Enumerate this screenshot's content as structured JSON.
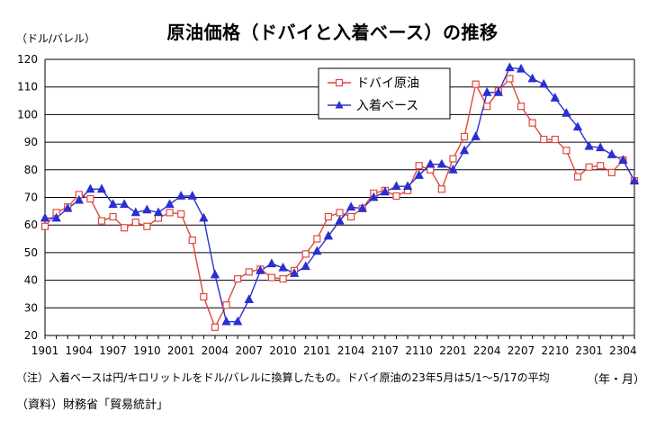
{
  "header": {
    "title": "原油価格（ドバイと入着ベース）の推移",
    "unit": "（ドル/バレル）",
    "x_unit": "（年・月）"
  },
  "footer": {
    "note": "（注）入着ベースは円/キロリットルをドル/バレルに換算したもの。ドバイ原油の23年5月は5/1～5/17の平均",
    "source": "（資料）財務省「貿易統計」"
  },
  "colors": {
    "dubai": "#e0483c",
    "landed": "#2a2fd0",
    "grid": "#000000"
  },
  "chart_data": {
    "type": "line",
    "title": "原油価格（ドバイと入着ベース）の推移",
    "ylabel": "（ドル/バレル）",
    "xlabel": "（年・月）",
    "ylim": [
      20,
      120
    ],
    "yticks": [
      20,
      30,
      40,
      50,
      60,
      70,
      80,
      90,
      100,
      110,
      120
    ],
    "grid": "horizontal",
    "legend_position": "top-center-right",
    "x_tick_labels": [
      "1901",
      "1904",
      "1907",
      "1910",
      "2001",
      "2004",
      "2007",
      "2010",
      "2101",
      "2104",
      "2107",
      "2110",
      "2201",
      "2204",
      "2207",
      "2210",
      "2301",
      "2304"
    ],
    "x": [
      "1901",
      "1902",
      "1903",
      "1904",
      "1905",
      "1906",
      "1907",
      "1908",
      "1909",
      "1910",
      "1911",
      "1912",
      "2001",
      "2002",
      "2003",
      "2004",
      "2005",
      "2006",
      "2007",
      "2008",
      "2009",
      "2010",
      "2011",
      "2012",
      "2101",
      "2102",
      "2103",
      "2104",
      "2105",
      "2106",
      "2107",
      "2108",
      "2109",
      "2110",
      "2111",
      "2112",
      "2201",
      "2202",
      "2203",
      "2204",
      "2205",
      "2206",
      "2207",
      "2208",
      "2209",
      "2210",
      "2211",
      "2212",
      "2301",
      "2302",
      "2303",
      "2304",
      "2305"
    ],
    "series": [
      {
        "name": "ドバイ原油",
        "marker": "square-open",
        "color": "#e0483c",
        "values": [
          59.5,
          64.5,
          66.5,
          71,
          69.5,
          61.5,
          63,
          59,
          61,
          59.5,
          62.5,
          64.5,
          64,
          54.5,
          34,
          23,
          31,
          40.5,
          43,
          44,
          41,
          40.5,
          43.5,
          49.5,
          55,
          63,
          64.5,
          63,
          66,
          71.5,
          72.5,
          70.5,
          72.5,
          81.5,
          80,
          73,
          84,
          92,
          111,
          103,
          108.5,
          113,
          103,
          97,
          91,
          91,
          87,
          77.5,
          81,
          81.5,
          79,
          83.5,
          76
        ]
      },
      {
        "name": "入着ベース",
        "marker": "triangle-filled",
        "color": "#2a2fd0",
        "values": [
          62.5,
          62.5,
          66,
          69,
          73,
          73,
          67.5,
          67.5,
          64.5,
          65.5,
          64.5,
          67.5,
          70.5,
          70.5,
          62.5,
          42,
          25,
          25,
          33,
          43.5,
          46,
          44.5,
          42.5,
          45,
          50.5,
          56,
          61.5,
          66.5,
          66,
          70,
          72,
          74,
          74,
          78,
          82,
          82,
          80,
          87,
          92,
          108,
          108,
          117,
          116.5,
          113,
          111,
          106,
          100.5,
          95.5,
          88.5,
          88,
          85.5,
          83.5,
          76
        ]
      }
    ]
  }
}
